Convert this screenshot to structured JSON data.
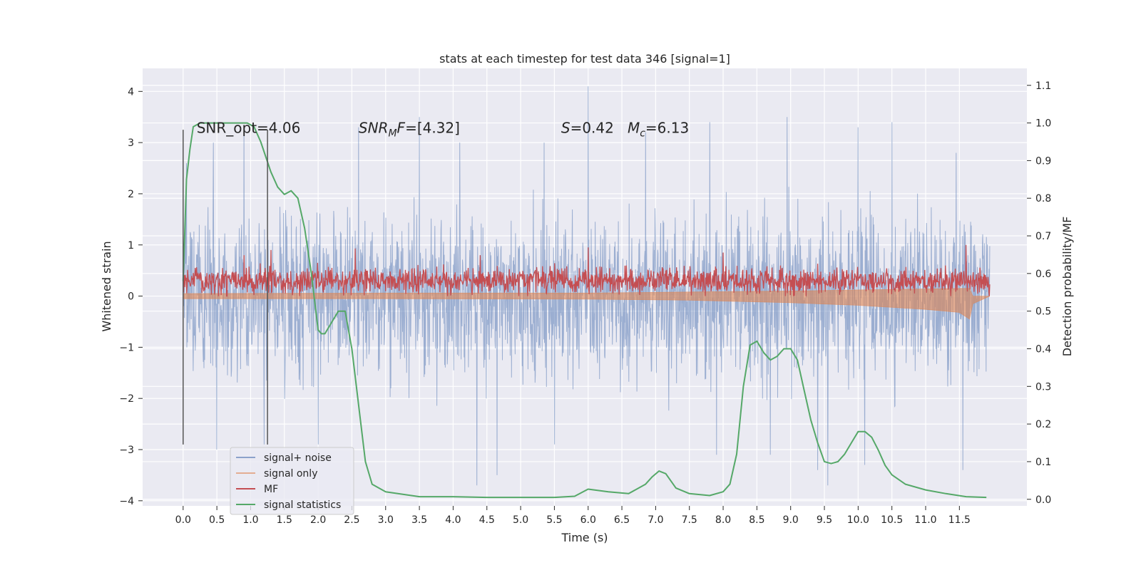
{
  "chart_data": {
    "type": "line",
    "title": "stats at each timestep for test data 346 [signal=1]",
    "xlabel": "Time (s)",
    "ylabel": "Whitened strain",
    "y2label": "Detection probability/MF",
    "xlim": [
      -0.6,
      12.5
    ],
    "ylim": [
      -4.1,
      4.45
    ],
    "y2lim": [
      -0.0175,
      1.145
    ],
    "x_ticks": [
      "0.0",
      "0.5",
      "1.0",
      "1.5",
      "2.0",
      "2.5",
      "3.0",
      "3.5",
      "4.0",
      "4.5",
      "5.0",
      "5.5",
      "6.0",
      "6.5",
      "7.0",
      "7.5",
      "8.0",
      "8.5",
      "9.0",
      "9.5",
      "10.0",
      "10.5",
      "11.0",
      "11.5"
    ],
    "y_ticks": [
      "4",
      "3",
      "2",
      "1",
      "0",
      "−1",
      "−2",
      "−3",
      "−4"
    ],
    "y2_ticks": [
      "1.1",
      "1.0",
      "0.9",
      "0.8",
      "0.7",
      "0.6",
      "0.5",
      "0.4",
      "0.3",
      "0.2",
      "0.1",
      "0.0"
    ],
    "grid": true,
    "legend_position": "lower-left",
    "annotations": [
      {
        "text": "SNR_opt=4.06",
        "x": 0.2,
        "y": 3.3
      },
      {
        "text": "SNR_MF=[4.32]",
        "x": 2.6,
        "y": 3.3
      },
      {
        "text": "S=0.42   M_c=6.13",
        "x": 5.6,
        "y": 3.3
      }
    ],
    "vlines": [
      {
        "x": 0.0,
        "y_range": [
          -2.9,
          3.25
        ]
      },
      {
        "x": 1.25,
        "y_range": [
          -2.9,
          3.25
        ]
      }
    ],
    "series": [
      {
        "name": "signal+ noise",
        "color": "#4c72b0",
        "axis": "left",
        "x_range": [
          0.0,
          11.95
        ],
        "band": [
          -1.5,
          1.5
        ],
        "spikes_high": [
          [
            0.05,
            2.6
          ],
          [
            0.45,
            3.0
          ],
          [
            0.9,
            3.3
          ],
          [
            1.2,
            2.9
          ],
          [
            2.6,
            3.3
          ],
          [
            3.5,
            3.5
          ],
          [
            4.1,
            3.0
          ],
          [
            5.35,
            3.0
          ],
          [
            6.0,
            4.1
          ],
          [
            6.85,
            3.2
          ],
          [
            7.8,
            3.4
          ],
          [
            8.95,
            3.5
          ],
          [
            9.4,
            3.1
          ],
          [
            10.0,
            3.3
          ],
          [
            10.5,
            3.4
          ],
          [
            11.45,
            2.8
          ]
        ],
        "spikes_low": [
          [
            0.5,
            -3.0
          ],
          [
            1.2,
            -2.9
          ],
          [
            2.0,
            -2.9
          ],
          [
            4.35,
            -3.7
          ],
          [
            4.65,
            -3.5
          ],
          [
            5.5,
            -2.9
          ],
          [
            7.9,
            -3.1
          ],
          [
            8.7,
            -3.1
          ],
          [
            9.4,
            -3.4
          ],
          [
            9.55,
            -3.7
          ],
          [
            10.1,
            -3.3
          ],
          [
            11.55,
            -3.4
          ]
        ]
      },
      {
        "name": "signal only",
        "color": "#dd8452",
        "axis": "left",
        "x": [
          0.0,
          3.0,
          6.0,
          7.5,
          9.0,
          10.0,
          11.0,
          11.5,
          11.65,
          11.7,
          11.95
        ],
        "upper": [
          0.05,
          0.06,
          0.06,
          0.08,
          0.1,
          0.12,
          0.14,
          0.15,
          0.15,
          0.0,
          0.0
        ],
        "lower": [
          -0.05,
          -0.05,
          -0.06,
          -0.08,
          -0.13,
          -0.18,
          -0.26,
          -0.32,
          -0.45,
          -0.15,
          0.0
        ]
      },
      {
        "name": "MF",
        "color": "#c44e52",
        "axis": "left",
        "x_range": [
          0.0,
          11.95
        ],
        "mean": 0.3,
        "band": [
          0.0,
          0.65
        ],
        "spikes": [
          [
            0.9,
            0.8
          ],
          [
            1.3,
            0.9
          ],
          [
            2.55,
            0.93
          ],
          [
            6.0,
            0.95
          ],
          [
            11.6,
            1.0
          ],
          [
            4.4,
            0.8
          ],
          [
            8.0,
            0.85
          ]
        ]
      },
      {
        "name": "signal statistics",
        "color": "#55a868",
        "axis": "right",
        "x": [
          0.0,
          0.05,
          0.1,
          0.15,
          0.25,
          0.4,
          0.6,
          0.8,
          0.95,
          1.05,
          1.15,
          1.3,
          1.4,
          1.5,
          1.6,
          1.7,
          1.8,
          1.9,
          2.0,
          2.05,
          2.1,
          2.2,
          2.3,
          2.4,
          2.5,
          2.6,
          2.7,
          2.8,
          3.0,
          3.5,
          4.0,
          4.5,
          5.0,
          5.3,
          5.5,
          5.8,
          6.0,
          6.3,
          6.6,
          6.85,
          6.95,
          7.05,
          7.15,
          7.3,
          7.5,
          7.8,
          8.0,
          8.1,
          8.2,
          8.3,
          8.4,
          8.5,
          8.6,
          8.7,
          8.8,
          8.9,
          9.0,
          9.1,
          9.2,
          9.3,
          9.4,
          9.5,
          9.6,
          9.7,
          9.8,
          9.9,
          10.0,
          10.1,
          10.2,
          10.3,
          10.4,
          10.5,
          10.7,
          11.0,
          11.3,
          11.6,
          11.9
        ],
        "y": [
          0.58,
          0.85,
          0.93,
          0.99,
          1.0,
          1.0,
          1.0,
          1.0,
          1.0,
          0.99,
          0.95,
          0.87,
          0.83,
          0.81,
          0.82,
          0.8,
          0.72,
          0.6,
          0.45,
          0.44,
          0.44,
          0.47,
          0.5,
          0.5,
          0.4,
          0.25,
          0.1,
          0.04,
          0.02,
          0.007,
          0.007,
          0.005,
          0.005,
          0.005,
          0.005,
          0.008,
          0.027,
          0.02,
          0.015,
          0.04,
          0.06,
          0.075,
          0.068,
          0.03,
          0.015,
          0.01,
          0.02,
          0.04,
          0.12,
          0.3,
          0.41,
          0.42,
          0.39,
          0.37,
          0.38,
          0.4,
          0.4,
          0.37,
          0.29,
          0.21,
          0.15,
          0.1,
          0.095,
          0.1,
          0.12,
          0.15,
          0.18,
          0.18,
          0.165,
          0.13,
          0.09,
          0.065,
          0.04,
          0.025,
          0.015,
          0.007,
          0.005
        ]
      }
    ]
  }
}
